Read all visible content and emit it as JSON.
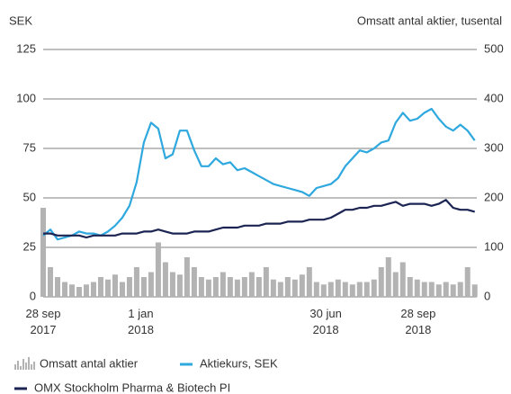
{
  "chart_data": {
    "type": "line",
    "y_label": "SEK",
    "y2_label": "Omsatt antal aktier, tusental",
    "x": [
      "2017-09-28",
      "2017-10-05",
      "2017-10-12",
      "2017-10-19",
      "2017-10-26",
      "2017-11-02",
      "2017-11-09",
      "2017-11-16",
      "2017-11-23",
      "2017-11-30",
      "2017-12-07",
      "2017-12-14",
      "2017-12-21",
      "2017-12-28",
      "2018-01-04",
      "2018-01-11",
      "2018-01-18",
      "2018-01-25",
      "2018-02-01",
      "2018-02-08",
      "2018-02-15",
      "2018-02-22",
      "2018-03-01",
      "2018-03-08",
      "2018-03-15",
      "2018-03-22",
      "2018-03-29",
      "2018-04-05",
      "2018-04-12",
      "2018-04-19",
      "2018-04-26",
      "2018-05-03",
      "2018-05-10",
      "2018-05-17",
      "2018-05-24",
      "2018-05-31",
      "2018-06-07",
      "2018-06-14",
      "2018-06-21",
      "2018-06-28",
      "2018-07-05",
      "2018-07-12",
      "2018-07-19",
      "2018-07-26",
      "2018-08-02",
      "2018-08-09",
      "2018-08-16",
      "2018-08-23",
      "2018-08-30",
      "2018-09-06",
      "2018-09-13",
      "2018-09-20",
      "2018-09-27",
      "2018-10-04",
      "2018-10-11",
      "2018-10-18",
      "2018-10-25",
      "2018-11-01",
      "2018-11-08",
      "2018-11-15",
      "2018-11-22"
    ],
    "series": [
      {
        "name": "Omsatt antal aktier",
        "type": "bar",
        "axis": "y2",
        "color": "#b3b3b3",
        "values": [
          180,
          60,
          40,
          30,
          25,
          20,
          25,
          30,
          40,
          35,
          45,
          30,
          40,
          60,
          40,
          50,
          110,
          70,
          50,
          45,
          80,
          60,
          40,
          35,
          40,
          50,
          40,
          35,
          40,
          50,
          40,
          60,
          35,
          30,
          40,
          35,
          45,
          60,
          30,
          25,
          30,
          35,
          30,
          25,
          30,
          30,
          35,
          60,
          80,
          50,
          70,
          40,
          35,
          30,
          30,
          25,
          30,
          25,
          30,
          60,
          25
        ]
      },
      {
        "name": "Aktiekurs, SEK",
        "type": "line",
        "color": "#2ea8de",
        "values": [
          31,
          34,
          29,
          30,
          31,
          33,
          32,
          32,
          31,
          33,
          36,
          40,
          46,
          58,
          78,
          88,
          85,
          70,
          72,
          84,
          84,
          74,
          66,
          66,
          70,
          67,
          68,
          64,
          65,
          63,
          61,
          59,
          57,
          56,
          55,
          54,
          53,
          51,
          55,
          56,
          57,
          60,
          66,
          70,
          74,
          73,
          75,
          78,
          79,
          88,
          93,
          89,
          90,
          93,
          95,
          90,
          86,
          84,
          87,
          84,
          79
        ]
      },
      {
        "name": "OMX Stockholm Pharma & Biotech PI",
        "type": "line",
        "color": "#1b2452",
        "values": [
          32,
          32,
          31,
          31,
          31,
          31,
          30,
          31,
          31,
          31,
          31,
          32,
          32,
          32,
          33,
          33,
          34,
          33,
          32,
          32,
          32,
          33,
          33,
          33,
          34,
          35,
          35,
          35,
          36,
          36,
          36,
          37,
          37,
          37,
          38,
          38,
          38,
          39,
          39,
          39,
          40,
          42,
          44,
          44,
          45,
          45,
          46,
          46,
          47,
          48,
          46,
          47,
          47,
          47,
          46,
          47,
          49,
          45,
          44,
          44,
          43
        ]
      }
    ],
    "xlim": [
      "2017-09-28",
      "2018-11-24"
    ],
    "xticks": [
      {
        "value": "2017-09-28",
        "label": "28 sep 2017"
      },
      {
        "value": "2018-01-01",
        "label": "1 jan 2018"
      },
      {
        "value": "2018-06-30",
        "label": "30 jun 2018"
      },
      {
        "value": "2018-09-28",
        "label": "28 sep 2018"
      }
    ],
    "ylim": [
      0,
      125
    ],
    "yticks": [
      0,
      25,
      50,
      75,
      100,
      125
    ],
    "y2lim": [
      0,
      500
    ],
    "y2ticks": [
      0,
      100,
      200,
      300,
      400,
      500
    ],
    "grid": true
  }
}
